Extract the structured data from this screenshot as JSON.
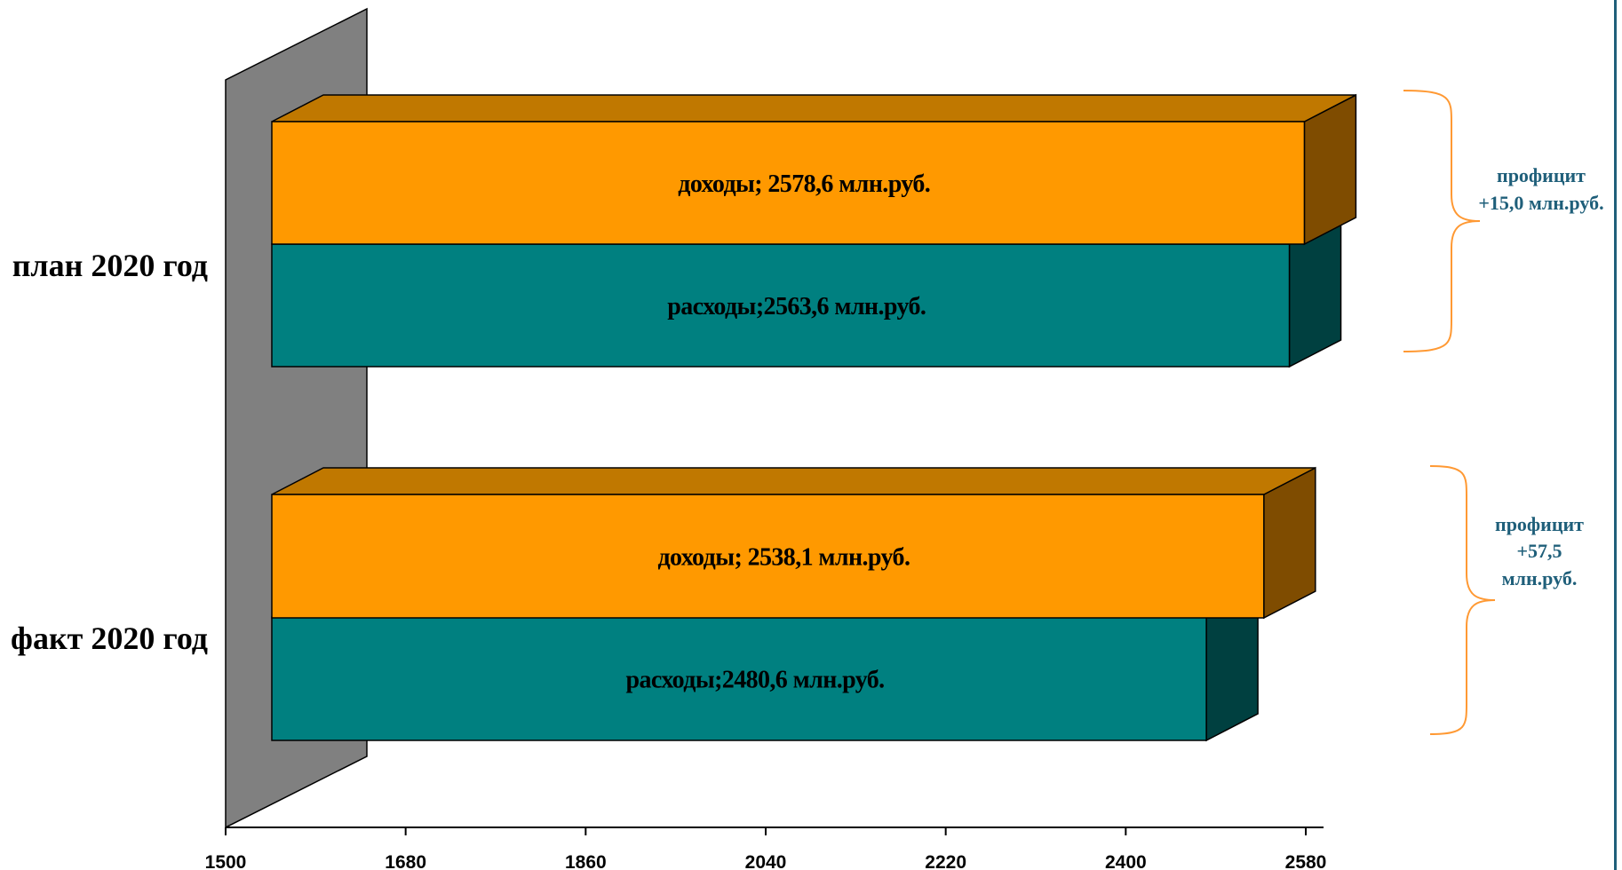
{
  "chart_data": {
    "type": "bar",
    "orientation": "horizontal",
    "three_d": true,
    "categories": [
      "план 2020 год",
      "факт 2020 год"
    ],
    "series": [
      {
        "name": "доходы",
        "values": [
          2578.6,
          2538.1
        ],
        "labels": [
          "доходы; 2578,6 млн.руб.",
          "доходы; 2538,1 млн.руб."
        ]
      },
      {
        "name": "расходы",
        "values": [
          2563.6,
          2480.6
        ],
        "labels": [
          "расходы;2563,6 млн.руб.",
          "расходы;2480,6 млн.руб."
        ]
      }
    ],
    "xlim": [
      1500,
      2580
    ],
    "xticks": [
      "1500",
      "1680",
      "1860",
      "2040",
      "2220",
      "2400",
      "2580"
    ],
    "xticks_values": [
      1500,
      1680,
      1860,
      2040,
      2220,
      2400,
      2580
    ],
    "annotations": [
      {
        "category": "план 2020 год",
        "lines": [
          "профицит",
          "+15,0 млн.руб."
        ]
      },
      {
        "category": "факт 2020 год",
        "lines": [
          "профицит",
          "+57,5",
          "млн.руб."
        ]
      }
    ],
    "legend": "none",
    "grid": false
  },
  "colors": {
    "income_front": "#ff9900",
    "income_top": "#c07800",
    "income_side": "#7f4c00",
    "expense_front": "#008080",
    "expense_side": "#004040",
    "back_wall": "#808080",
    "brace": "#ff9933",
    "annotation_text": "#1f5f7a"
  }
}
